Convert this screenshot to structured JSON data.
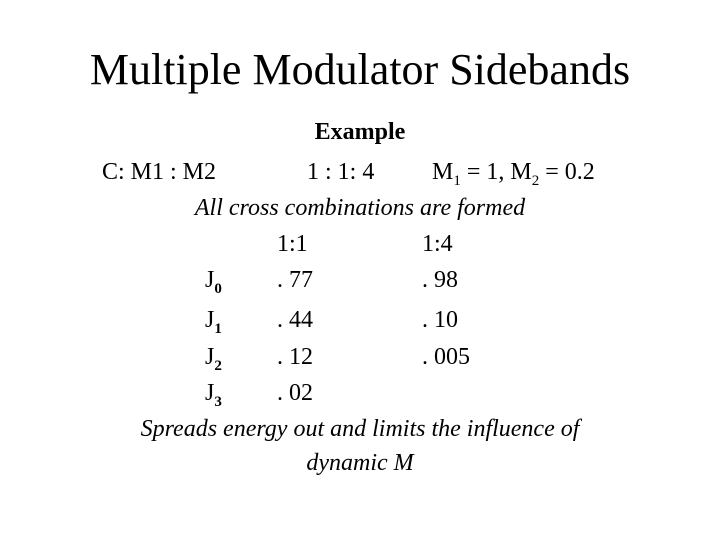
{
  "title": "Multiple Modulator Sidebands",
  "example_label": "Example",
  "ratio_line": {
    "label": "C: M1 : M2",
    "ratio": "1 : 1: 4",
    "m1_symbol": "M",
    "m1_sub": "1",
    "m1_value": " = 1, M",
    "m2_sub": "2",
    "m2_value": " = 0.2"
  },
  "cross_line": "All cross combinations are formed",
  "table": {
    "columns": [
      "1:1",
      "1:4"
    ],
    "rows": [
      {
        "symbol": "J",
        "sub": "0",
        "values": [
          ". 77",
          ". 98"
        ]
      },
      {
        "symbol": "J",
        "sub": "1",
        "values": [
          ". 44",
          ". 10"
        ]
      },
      {
        "symbol": "J",
        "sub": "2",
        "values": [
          ". 12",
          ". 005"
        ]
      },
      {
        "symbol": "J",
        "sub": "3",
        "values": [
          ". 02"
        ]
      }
    ]
  },
  "conclusion": {
    "line1": "Spreads energy out and limits the influence of",
    "line2": "dynamic M"
  },
  "colors": {
    "text": "#000000",
    "accent": "#cc0000"
  }
}
